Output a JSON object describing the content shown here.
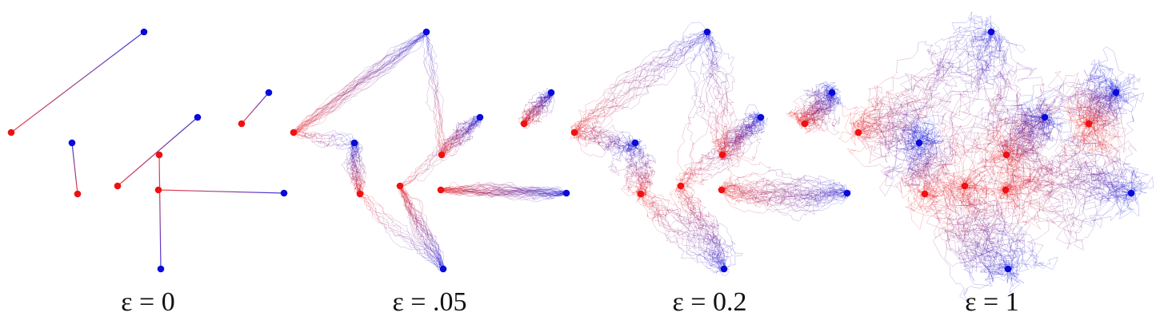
{
  "colors": {
    "source": "#ee1111",
    "target": "#0a0ad8"
  },
  "chart_data": {
    "type": "scatter",
    "description_free": true,
    "source_points": [
      [
        0,
        1.71
      ],
      [
        0.83,
        0.94
      ],
      [
        1.33,
        1.04
      ],
      [
        1.85,
        1.43
      ],
      [
        1.84,
        0.99
      ],
      [
        2.88,
        1.82
      ]
    ],
    "target_points": [
      [
        1.66,
        2.97
      ],
      [
        0.76,
        1.58
      ],
      [
        2.33,
        1.9
      ],
      [
        1.87,
        0.0
      ],
      [
        3.41,
        0.95
      ],
      [
        3.22,
        2.21
      ]
    ],
    "panels": [
      {
        "epsilon": 0,
        "label": "ε = 0"
      },
      {
        "epsilon": 0.05,
        "label": "ε = .05"
      },
      {
        "epsilon": 0.2,
        "label": "ε = 0.2"
      },
      {
        "epsilon": 1,
        "label": "ε = 1"
      }
    ]
  }
}
